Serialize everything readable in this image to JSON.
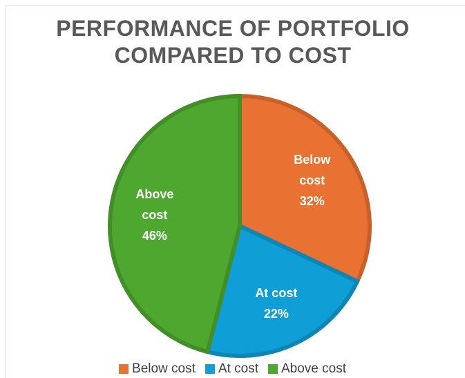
{
  "chart_data": {
    "type": "pie",
    "title": "PERFORMANCE OF PORTFOLIO COMPARED TO COST",
    "categories": [
      "Below cost",
      "At cost",
      "Above cost"
    ],
    "values": [
      32,
      22,
      46
    ],
    "value_labels": [
      "32%",
      "22%",
      "46%"
    ],
    "colors": [
      "#e97132",
      "#0f9ed5",
      "#4ea72e"
    ],
    "edgecolors": [
      "#c8602a",
      "#0c86b5",
      "#428e27"
    ],
    "legend": "bottom"
  }
}
